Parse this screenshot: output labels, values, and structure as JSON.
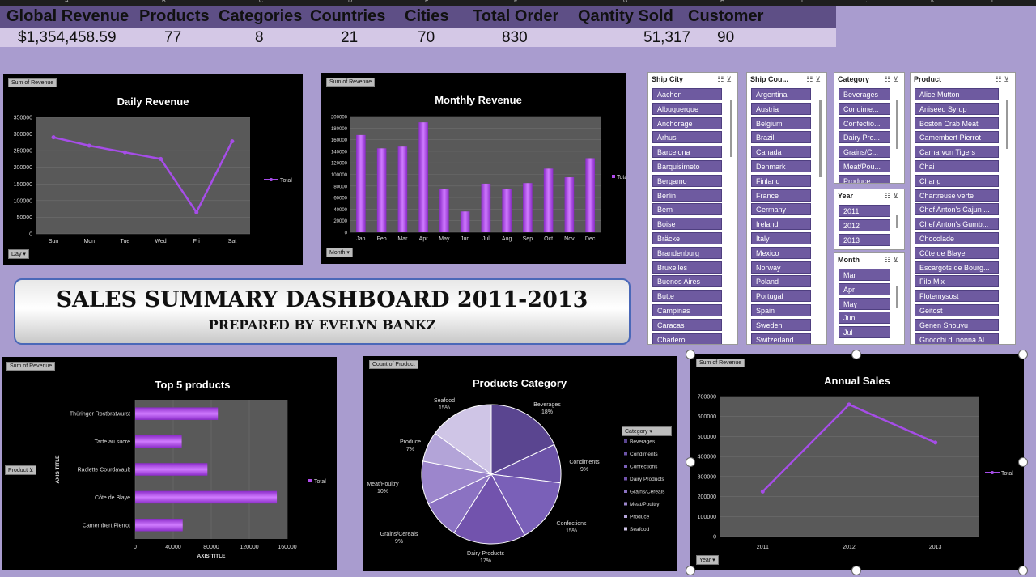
{
  "columns": [
    "A",
    "B",
    "C",
    "D",
    "E",
    "F",
    "G",
    "H",
    "I",
    "J",
    "K",
    "L"
  ],
  "kpi": {
    "headers": [
      "Global Revenue",
      "Products",
      "Categories",
      "Countries",
      "Cities",
      "Total Order",
      "Qantity Sold",
      "Customer"
    ],
    "values": [
      "$1,354,458.59",
      "77",
      "8",
      "21",
      "70",
      "830",
      "51,317",
      "90"
    ]
  },
  "daily": {
    "pill": "Sum of Revenue",
    "title": "Daily Revenue",
    "legend": "Total",
    "filter": "Day",
    "chart_data": {
      "type": "line",
      "categories": [
        "Sun",
        "Mon",
        "Tue",
        "Wed",
        "Fri",
        "Sat"
      ],
      "series": [
        {
          "name": "Total",
          "values": [
            290000,
            265000,
            245000,
            225000,
            65000,
            278000
          ]
        }
      ],
      "ylim": [
        0,
        350000
      ],
      "yticks": [
        0,
        50000,
        100000,
        150000,
        200000,
        250000,
        300000,
        350000
      ]
    }
  },
  "monthly": {
    "pill": "Sum of Revenue",
    "title": "Monthly Revenue",
    "legend": "Total",
    "filter": "Month",
    "chart_data": {
      "type": "bar",
      "categories": [
        "Jan",
        "Feb",
        "Mar",
        "Apr",
        "May",
        "Jun",
        "Jul",
        "Aug",
        "Sep",
        "Oct",
        "Nov",
        "Dec"
      ],
      "series": [
        {
          "name": "Total",
          "values": [
            168000,
            145000,
            148000,
            190000,
            75000,
            36000,
            84000,
            75000,
            85000,
            110000,
            95000,
            128000
          ]
        }
      ],
      "ylim": [
        0,
        200000
      ],
      "yticks": [
        0,
        20000,
        40000,
        60000,
        80000,
        100000,
        120000,
        140000,
        160000,
        180000,
        200000
      ]
    }
  },
  "banner": {
    "title": "SALES SUMMARY DASHBOARD 2011-2013",
    "subtitle": "PREPARED BY EVELYN BANKZ"
  },
  "top5": {
    "pill": "Sum of Revenue",
    "title": "Top 5 products",
    "legend": "Total",
    "filter": "Product",
    "xlabel": "AXIS TITLE",
    "ylabel": "AXIS TITLE",
    "chart_data": {
      "type": "bar",
      "categories": [
        "Thüringer Rostbratwurst",
        "Tarte au sucre",
        "Raclette Courdavault",
        "Côte de Blaye",
        "Camembert Pierrot"
      ],
      "series": [
        {
          "name": "Total",
          "values": [
            87000,
            49000,
            76000,
            149000,
            50000
          ]
        }
      ],
      "xlim": [
        0,
        160000
      ],
      "xticks": [
        0,
        40000,
        80000,
        120000,
        160000
      ]
    }
  },
  "category": {
    "pill": "Count of Product",
    "title": "Products Category",
    "filter": "Category",
    "legend": [
      "Beverages",
      "Condiments",
      "Confections",
      "Dairy Products",
      "Grains/Cereals",
      "Meat/Poultry",
      "Produce",
      "Seafood"
    ],
    "chart_data": {
      "type": "pie",
      "labels": [
        "Beverages",
        "Condiments",
        "Confections",
        "Dairy Products",
        "Grains/Cereals",
        "Meat/Poultry",
        "Produce",
        "Seafood"
      ],
      "values": [
        18,
        9,
        15,
        17,
        9,
        10,
        7,
        15
      ],
      "display": [
        "18%",
        "9%",
        "15%",
        "17%",
        "9%",
        "10%",
        "7%",
        "15%"
      ]
    }
  },
  "annual": {
    "pill": "Sum of Revenue",
    "title": "Annual Sales",
    "legend": "Total",
    "filter": "Year",
    "chart_data": {
      "type": "line",
      "categories": [
        "2011",
        "2012",
        "2013"
      ],
      "series": [
        {
          "name": "Total",
          "values": [
            225000,
            660000,
            470000
          ]
        }
      ],
      "ylim": [
        0,
        700000
      ],
      "yticks": [
        0,
        100000,
        200000,
        300000,
        400000,
        500000,
        600000,
        700000
      ]
    }
  },
  "slicers": {
    "city": {
      "title": "Ship City",
      "items": [
        "Aachen",
        "Albuquerque",
        "Anchorage",
        "Århus",
        "Barcelona",
        "Barquisimeto",
        "Bergamo",
        "Berlin",
        "Bern",
        "Boise",
        "Bräcke",
        "Brandenburg",
        "Bruxelles",
        "Buenos Aires",
        "Butte",
        "Campinas",
        "Caracas",
        "Charleroi"
      ]
    },
    "country": {
      "title": "Ship Cou...",
      "items": [
        "Argentina",
        "Austria",
        "Belgium",
        "Brazil",
        "Canada",
        "Denmark",
        "Finland",
        "France",
        "Germany",
        "Ireland",
        "Italy",
        "Mexico",
        "Norway",
        "Poland",
        "Portugal",
        "Spain",
        "Sweden",
        "Switzerland"
      ]
    },
    "category": {
      "title": "Category",
      "items": [
        "Beverages",
        "Condime...",
        "Confectio...",
        "Dairy Pro...",
        "Grains/C...",
        "Meat/Pou...",
        "Produce"
      ]
    },
    "year": {
      "title": "Year",
      "items": [
        "2011",
        "2012",
        "2013"
      ]
    },
    "month": {
      "title": "Month",
      "items": [
        "Mar",
        "Apr",
        "May",
        "Jun",
        "Jul"
      ]
    },
    "product": {
      "title": "Product",
      "items": [
        "Alice Mutton",
        "Aniseed Syrup",
        "Boston Crab Meat",
        "Camembert Pierrot",
        "Carnarvon Tigers",
        "Chai",
        "Chang",
        "Chartreuse verte",
        "Chef Anton's Cajun ...",
        "Chef Anton's Gumb...",
        "Chocolade",
        "Côte de Blaye",
        "Escargots de Bourg...",
        "Filo Mix",
        "Flotemysost",
        "Geitost",
        "Genen Shouyu",
        "Gnocchi di nonna Al..."
      ]
    }
  },
  "colors": {
    "bar": "#b44cf0",
    "line": "#a64de8",
    "plot": "#595959",
    "kpi_head": "#5e4f86",
    "slicer_item": "#6e5aa0"
  }
}
